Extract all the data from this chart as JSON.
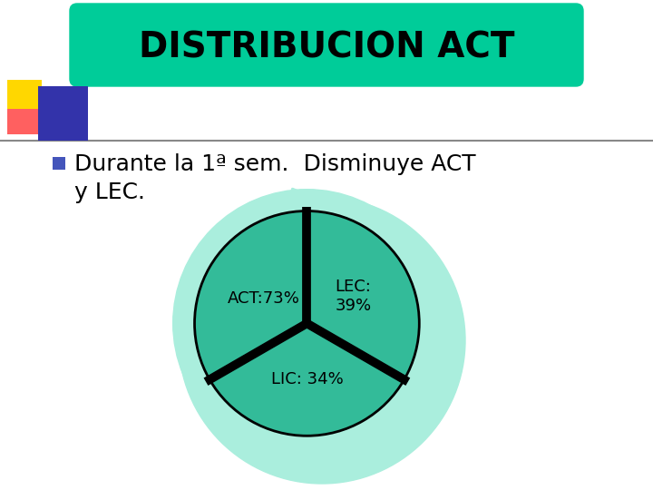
{
  "title": "DISTRIBUCION ACT",
  "title_bg_color": "#00CC99",
  "title_font_size": 28,
  "bullet_color": "#4455BB",
  "pie_color_dark": "#33BB99",
  "pie_color_light": "#AAEEDD",
  "background_color": "#FFFFFF",
  "pie_label_act": "ACT:73%",
  "pie_label_lec": "LEC:\n39%",
  "pie_label_lic": "LIC: 34%",
  "pie_label_fontsize": 13,
  "bullet_fontsize": 18,
  "deco_yellow": "#FFD700",
  "deco_red": "#FF4444",
  "deco_blue": "#3333AA"
}
